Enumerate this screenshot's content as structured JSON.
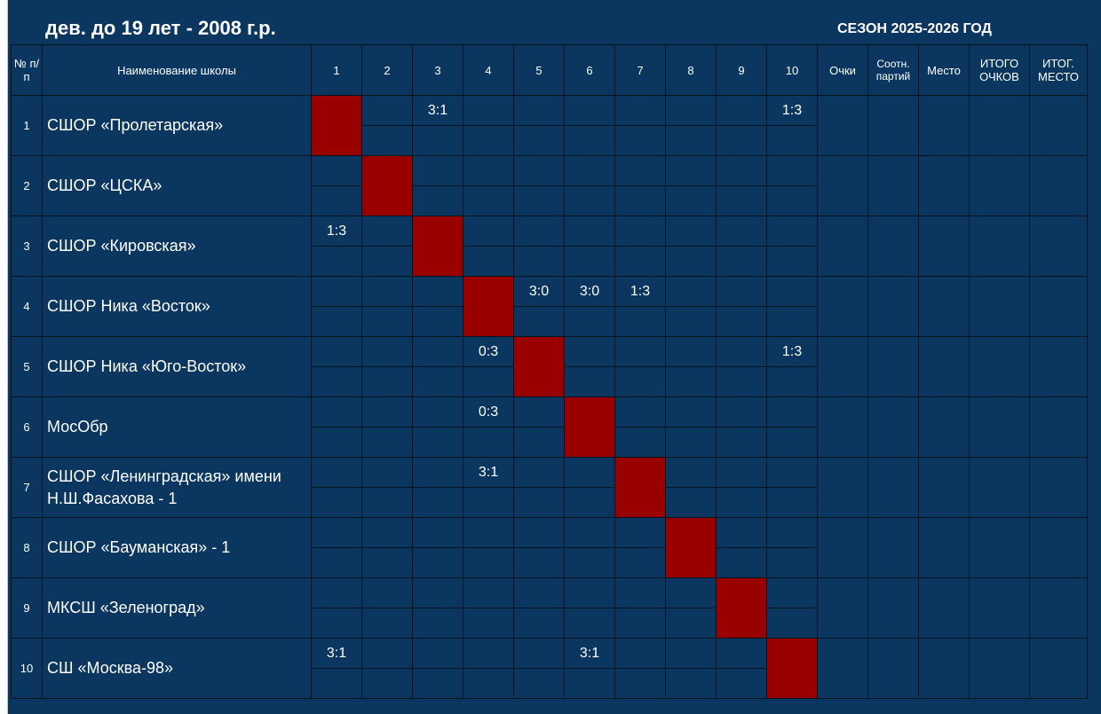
{
  "title": "дев. до 19 лет - 2008 г.р.",
  "season": "СЕЗОН 2025-2026 ГОД",
  "colors": {
    "background": "#0a3660",
    "diagonal": "#990000",
    "grid": "#03121f",
    "text": "#ffffff"
  },
  "headers": {
    "num": "№ п/п",
    "school": "Наименование школы",
    "columns": [
      "1",
      "2",
      "3",
      "4",
      "5",
      "6",
      "7",
      "8",
      "9",
      "10"
    ],
    "points": "Очки",
    "ratio": "Соотн. партий",
    "place": "Место",
    "total_points": "ИТОГО ОЧКОВ",
    "final_place": "ИТОГ. МЕСТО"
  },
  "teams": [
    {
      "num": "1",
      "name": "СШОР «Пролетарская»",
      "scores": [
        "",
        "",
        "3:1",
        "",
        "",
        "",
        "",
        "",
        "",
        "1:3"
      ]
    },
    {
      "num": "2",
      "name": "СШОР «ЦСКА»",
      "scores": [
        "",
        "",
        "",
        "",
        "",
        "",
        "",
        "",
        "",
        ""
      ]
    },
    {
      "num": "3",
      "name": "СШОР «Кировская»",
      "scores": [
        "1:3",
        "",
        "",
        "",
        "",
        "",
        "",
        "",
        "",
        ""
      ]
    },
    {
      "num": "4",
      "name": "СШОР Ника «Восток»",
      "scores": [
        "",
        "",
        "",
        "",
        "3:0",
        "3:0",
        "1:3",
        "",
        "",
        ""
      ]
    },
    {
      "num": "5",
      "name": "СШОР Ника «Юго-Восток»",
      "scores": [
        "",
        "",
        "",
        "0:3",
        "",
        "",
        "",
        "",
        "",
        "1:3"
      ]
    },
    {
      "num": "6",
      "name": "МосОбр",
      "scores": [
        "",
        "",
        "",
        "0:3",
        "",
        "",
        "",
        "",
        "",
        ""
      ]
    },
    {
      "num": "7",
      "name": "СШОР «Ленинградская» имени Н.Ш.Фасахова - 1",
      "scores": [
        "",
        "",
        "",
        "3:1",
        "",
        "",
        "",
        "",
        "",
        ""
      ]
    },
    {
      "num": "8",
      "name": "СШОР «Бауманская» - 1",
      "scores": [
        "",
        "",
        "",
        "",
        "",
        "",
        "",
        "",
        "",
        ""
      ]
    },
    {
      "num": "9",
      "name": "МКСШ «Зеленоград»",
      "scores": [
        "",
        "",
        "",
        "",
        "",
        "",
        "",
        "",
        "",
        ""
      ]
    },
    {
      "num": "10",
      "name": "СШ «Москва-98»",
      "scores": [
        "3:1",
        "",
        "",
        "",
        "",
        "3:1",
        "",
        "",
        "",
        ""
      ]
    }
  ]
}
